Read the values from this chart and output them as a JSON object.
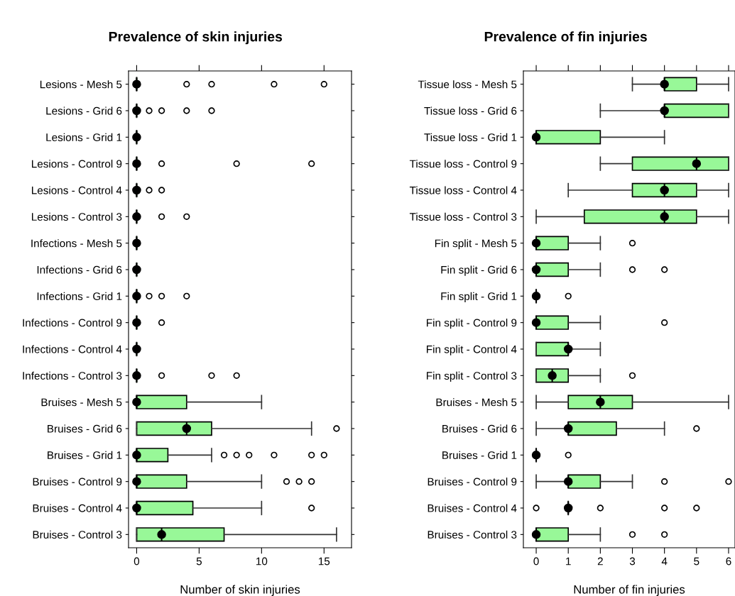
{
  "chart_data": [
    {
      "type": "box",
      "orientation": "horizontal",
      "title": "Prevalence of skin injuries",
      "xlabel": "Number of skin injuries",
      "color": "#98f898",
      "xlim": [
        -0.65,
        17.2
      ],
      "xticks": [
        0,
        5,
        10,
        15
      ],
      "grid": false,
      "categories": [
        "Lesions - Mesh 5",
        "Lesions - Grid 6",
        "Lesions - Grid 1",
        "Lesions - Control 9",
        "Lesions - Control 4",
        "Lesions - Control 3",
        "Infections - Mesh 5",
        "Infections - Grid 6",
        "Infections - Grid 1",
        "Infections - Control 9",
        "Infections - Control 4",
        "Infections - Control 3",
        "Bruises - Mesh 5",
        "Bruises - Grid 6",
        "Bruises - Grid 1",
        "Bruises - Control 9",
        "Bruises - Control 4",
        "Bruises - Control 3"
      ],
      "boxes": [
        {
          "low": 0,
          "q1": 0,
          "median": 0,
          "q3": 0,
          "high": 0,
          "outliers": [
            4,
            6,
            11,
            15
          ]
        },
        {
          "low": 0,
          "q1": 0,
          "median": 0,
          "q3": 0,
          "high": 0,
          "outliers": [
            1,
            2,
            4,
            6
          ]
        },
        {
          "low": 0,
          "q1": 0,
          "median": 0,
          "q3": 0,
          "high": 0
        },
        {
          "low": 0,
          "q1": 0,
          "median": 0,
          "q3": 0,
          "high": 0,
          "outliers": [
            2,
            8,
            14
          ]
        },
        {
          "low": 0,
          "q1": 0,
          "median": 0,
          "q3": 0,
          "high": 0,
          "outliers": [
            1,
            2
          ]
        },
        {
          "low": 0,
          "q1": 0,
          "median": 0,
          "q3": 0,
          "high": 0,
          "outliers": [
            2,
            4
          ]
        },
        {
          "low": 0,
          "q1": 0,
          "median": 0,
          "q3": 0,
          "high": 0
        },
        {
          "low": 0,
          "q1": 0,
          "median": 0,
          "q3": 0,
          "high": 0
        },
        {
          "low": 0,
          "q1": 0,
          "median": 0,
          "q3": 0,
          "high": 0,
          "outliers": [
            1,
            2,
            4
          ]
        },
        {
          "low": 0,
          "q1": 0,
          "median": 0,
          "q3": 0,
          "high": 0,
          "outliers": [
            2
          ]
        },
        {
          "low": 0,
          "q1": 0,
          "median": 0,
          "q3": 0,
          "high": 0
        },
        {
          "low": 0,
          "q1": 0,
          "median": 0,
          "q3": 0,
          "high": 0,
          "outliers": [
            2,
            6,
            8
          ]
        },
        {
          "low": 0,
          "q1": 0,
          "median": 0,
          "q3": 4,
          "high": 10
        },
        {
          "low": 0,
          "q1": 0,
          "median": 4,
          "q3": 6,
          "high": 14,
          "outliers": [
            16
          ]
        },
        {
          "low": 0,
          "q1": 0,
          "median": 0,
          "q3": 2.5,
          "high": 6,
          "outliers": [
            7,
            8,
            9,
            11,
            14,
            15
          ]
        },
        {
          "low": 0,
          "q1": 0,
          "median": 0,
          "q3": 4,
          "high": 10,
          "outliers": [
            12,
            13,
            14
          ]
        },
        {
          "low": 0,
          "q1": 0,
          "median": 0,
          "q3": 4.5,
          "high": 10,
          "outliers": [
            14
          ]
        },
        {
          "low": 0,
          "q1": 0,
          "median": 2,
          "q3": 7,
          "high": 16
        }
      ],
      "series": [
        {
          "type": "scatter",
          "color": "#000000",
          "marker": "circle",
          "x": [
            "Lesions - Mesh 5",
            "Lesions - Grid 6",
            "Lesions - Grid 1",
            "Lesions - Control 9",
            "Lesions - Control 4",
            "Lesions - Control 3",
            "Infections - Mesh 5",
            "Infections - Grid 6",
            "Infections - Grid 1",
            "Infections - Control 9",
            "Infections - Control 4",
            "Infections - Control 3",
            "Bruises - Mesh 5",
            "Bruises - Grid 6",
            "Bruises - Grid 1",
            "Bruises - Control 9",
            "Bruises - Control 4",
            "Bruises - Control 3"
          ],
          "values": [
            0,
            0,
            0,
            0,
            0,
            0,
            0,
            0,
            0,
            0,
            0,
            0,
            0,
            4,
            0,
            0,
            0,
            2
          ]
        }
      ]
    },
    {
      "type": "box",
      "orientation": "horizontal",
      "title": "Prevalence of fin injuries",
      "xlabel": "Number of fin injuries",
      "color": "#98f898",
      "xlim": [
        -0.4,
        6.2
      ],
      "xticks": [
        0,
        1,
        2,
        3,
        4,
        5,
        6
      ],
      "grid": false,
      "categories": [
        "Tissue loss - Mesh 5",
        "Tissue loss - Grid 6",
        "Tissue loss - Grid 1",
        "Tissue loss - Control 9",
        "Tissue loss - Control 4",
        "Tissue loss - Control 3",
        "Fin split - Mesh 5",
        "Fin split - Grid 6",
        "Fin split - Grid 1",
        "Fin split - Control 9",
        "Fin split - Control 4",
        "Fin split - Control 3",
        "Bruises - Mesh 5",
        "Bruises - Grid 6",
        "Bruises - Grid 1",
        "Bruises - Control 9",
        "Bruises - Control 4",
        "Bruises - Control 3"
      ],
      "boxes": [
        {
          "low": 3,
          "q1": 4,
          "median": 4,
          "q3": 5,
          "high": 6
        },
        {
          "low": 2,
          "q1": 4,
          "median": 4,
          "q3": 6,
          "high": 6
        },
        {
          "low": 0,
          "q1": 0,
          "median": 0,
          "q3": 2,
          "high": 4
        },
        {
          "low": 2,
          "q1": 3,
          "median": 5,
          "q3": 6,
          "high": 6
        },
        {
          "low": 1,
          "q1": 3,
          "median": 4,
          "q3": 5,
          "high": 6
        },
        {
          "low": 0,
          "q1": 1.5,
          "median": 4,
          "q3": 5,
          "high": 6
        },
        {
          "low": 0,
          "q1": 0,
          "median": 0,
          "q3": 1,
          "high": 2,
          "outliers": [
            3
          ]
        },
        {
          "low": 0,
          "q1": 0,
          "median": 0,
          "q3": 1,
          "high": 2,
          "outliers": [
            3,
            4
          ]
        },
        {
          "low": 0,
          "q1": 0,
          "median": 0,
          "q3": 0,
          "high": 0,
          "outliers": [
            1
          ]
        },
        {
          "low": 0,
          "q1": 0,
          "median": 0,
          "q3": 1,
          "high": 2,
          "outliers": [
            4
          ]
        },
        {
          "low": 0,
          "q1": 0,
          "median": 1,
          "q3": 1,
          "high": 2
        },
        {
          "low": 0,
          "q1": 0,
          "median": 0.5,
          "q3": 1,
          "high": 2,
          "outliers": [
            3
          ]
        },
        {
          "low": 0,
          "q1": 1,
          "median": 2,
          "q3": 3,
          "high": 6
        },
        {
          "low": 0,
          "q1": 1,
          "median": 1,
          "q3": 2.5,
          "high": 4,
          "outliers": [
            5
          ]
        },
        {
          "low": 0,
          "q1": 0,
          "median": 0,
          "q3": 0,
          "high": 0,
          "outliers": [
            1
          ]
        },
        {
          "low": 0,
          "q1": 1,
          "median": 1,
          "q3": 2,
          "high": 3,
          "outliers": [
            4,
            6
          ]
        },
        {
          "low": 1,
          "q1": 1,
          "median": 1,
          "q3": 1,
          "high": 1,
          "outliers": [
            0,
            2,
            4,
            5
          ]
        },
        {
          "low": 0,
          "q1": 0,
          "median": 0,
          "q3": 1,
          "high": 2,
          "outliers": [
            3,
            4
          ]
        }
      ],
      "series": [
        {
          "type": "scatter",
          "color": "#000000",
          "marker": "circle",
          "x": [
            "Tissue loss - Mesh 5",
            "Tissue loss - Grid 6",
            "Tissue loss - Grid 1",
            "Tissue loss - Control 9",
            "Tissue loss - Control 4",
            "Tissue loss - Control 3",
            "Fin split - Mesh 5",
            "Fin split - Grid 6",
            "Fin split - Grid 1",
            "Fin split - Control 9",
            "Fin split - Control 4",
            "Fin split - Control 3",
            "Bruises - Mesh 5",
            "Bruises - Grid 6",
            "Bruises - Grid 1",
            "Bruises - Control 9",
            "Bruises - Control 4",
            "Bruises - Control 3"
          ],
          "values": [
            4,
            4,
            0,
            5,
            4,
            4,
            0,
            0,
            0,
            0,
            1,
            0.5,
            2,
            1,
            0,
            1,
            1,
            0
          ]
        }
      ]
    }
  ]
}
